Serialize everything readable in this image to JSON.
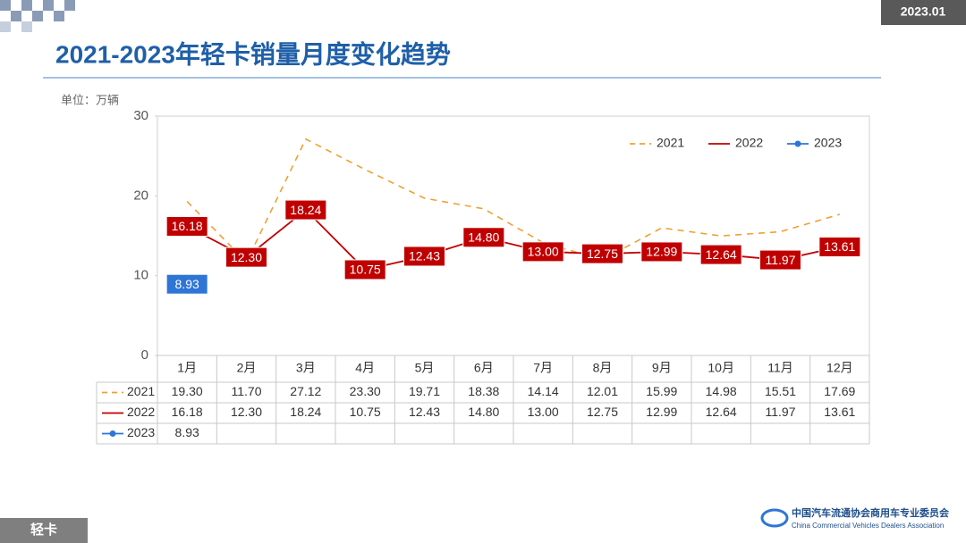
{
  "header": {
    "date": "2023.01",
    "footer_tag": "轻卡",
    "org_cn": "中国汽车流通协会商用车专业委员会",
    "org_en": "China Commercial Vehicles Dealers Association"
  },
  "chart_data": {
    "type": "line",
    "title": "2021-2023年轻卡销量月度变化趋势",
    "unit": "单位：万辆",
    "categories": [
      "1月",
      "2月",
      "3月",
      "4月",
      "5月",
      "6月",
      "7月",
      "8月",
      "9月",
      "10月",
      "11月",
      "12月"
    ],
    "series": [
      {
        "name": "2021",
        "color": "#f0a030",
        "dashed": true,
        "values": [
          19.3,
          11.7,
          27.12,
          23.3,
          19.71,
          18.38,
          14.14,
          12.01,
          15.99,
          14.98,
          15.51,
          17.69
        ],
        "value_labels": [
          "19.30",
          "11.70",
          "27.12",
          "23.30",
          "19.71",
          "18.38",
          "14.14",
          "12.01",
          "15.99",
          "14.98",
          "15.51",
          "17.69"
        ]
      },
      {
        "name": "2022",
        "color": "#c00000",
        "show_labels": true,
        "values": [
          16.18,
          12.3,
          18.24,
          10.75,
          12.43,
          14.8,
          13.0,
          12.75,
          12.99,
          12.64,
          11.97,
          13.61
        ],
        "value_labels": [
          "16.18",
          "12.30",
          "18.24",
          "10.75",
          "12.43",
          "14.80",
          "13.00",
          "12.75",
          "12.99",
          "12.64",
          "11.97",
          "13.61"
        ]
      },
      {
        "name": "2023",
        "color": "#2e75d6",
        "show_labels": true,
        "marker": true,
        "values": [
          8.93,
          null,
          null,
          null,
          null,
          null,
          null,
          null,
          null,
          null,
          null,
          null
        ],
        "value_labels": [
          "8.93",
          null,
          null,
          null,
          null,
          null,
          null,
          null,
          null,
          null,
          null,
          null
        ]
      }
    ],
    "ylim": [
      0,
      30
    ],
    "yticks": [
      0,
      10,
      20,
      30
    ],
    "grid": false,
    "legend": "top-right"
  }
}
